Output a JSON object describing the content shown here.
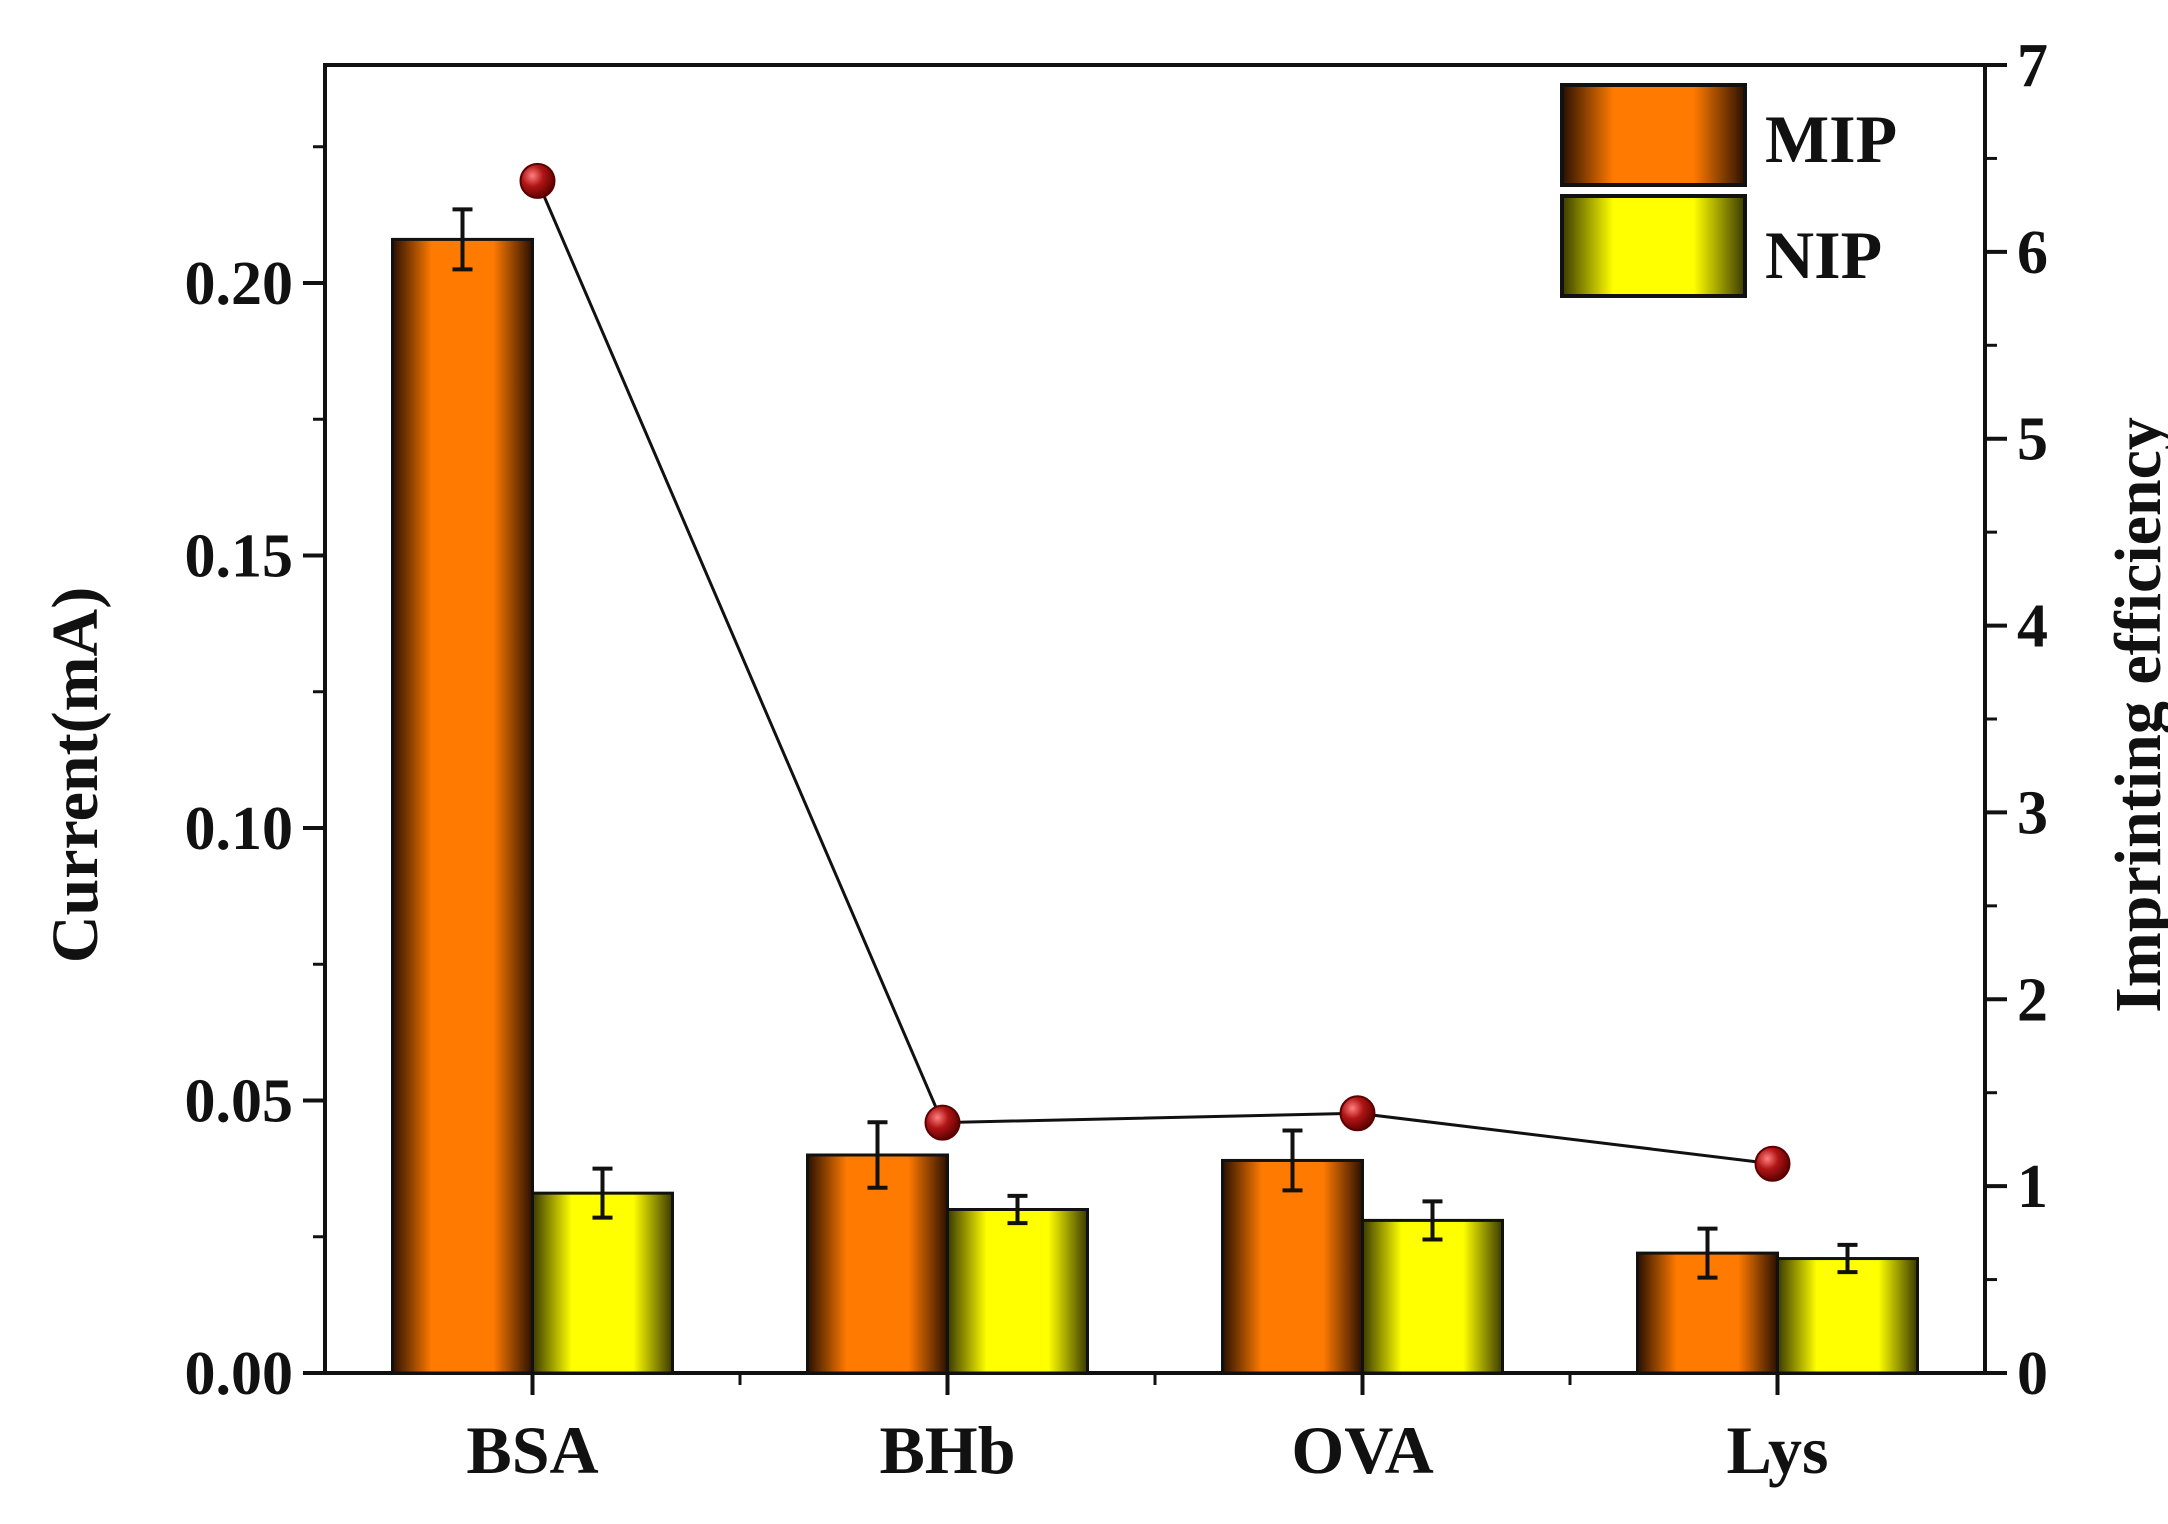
{
  "chart_data": {
    "type": "bar",
    "categories": [
      "BSA",
      "BHb",
      "OVA",
      "Lys"
    ],
    "series": [
      {
        "name": "MIP",
        "values": [
          0.208,
          0.04,
          0.039,
          0.022
        ],
        "errors": [
          0.0055,
          0.006,
          0.0055,
          0.0045
        ],
        "color": "#ff7a00"
      },
      {
        "name": "NIP",
        "values": [
          0.033,
          0.03,
          0.028,
          0.021
        ],
        "errors": [
          0.0045,
          0.0025,
          0.0035,
          0.0025
        ],
        "color": "#ffff00"
      }
    ],
    "line_series": {
      "values": [
        6.38,
        1.34,
        1.39,
        1.12
      ],
      "marker_color": "#a01010",
      "line_color": "#111111"
    },
    "ylabel": "Current(mA)",
    "ylabel_right": "Imprinting efficiency",
    "ylim": [
      0,
      0.24
    ],
    "ylim_right": [
      0,
      7
    ],
    "yticks": [
      "0.00",
      "0.05",
      "0.10",
      "0.15",
      "0.20"
    ],
    "yticks_right": [
      "0",
      "1",
      "2",
      "3",
      "4",
      "5",
      "6",
      "7"
    ],
    "legend_position": "top-right",
    "grid": false
  }
}
